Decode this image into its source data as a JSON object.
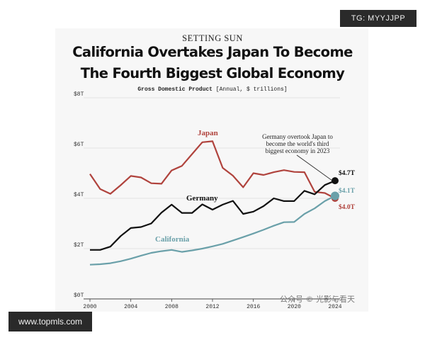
{
  "header": {
    "kicker": "SETTING SUN",
    "title_line1": "California Overtakes Japan To Become",
    "title_line2": "The Fourth Biggest Global Economy",
    "subtitle_bold": "Gross Domestic Product",
    "subtitle_rest": "[Annual, $ trillions]"
  },
  "badges": {
    "tg": "TG: MYYJJPP",
    "site": "www.topmls.com",
    "watermark": "公众号 © 光影与看天"
  },
  "chart_data": {
    "type": "line",
    "title": "California Overtakes Japan To Become The Fourth Biggest Global Economy",
    "ylabel": "Gross Domestic Product [Annual, $ trillions]",
    "ylim": [
      0,
      8
    ],
    "xlim": [
      2000,
      2024
    ],
    "y_ticks": [
      0,
      2,
      4,
      6,
      8
    ],
    "y_tick_labels": [
      "$0T",
      "$2T",
      "$4T",
      "$6T",
      "$8T"
    ],
    "x_ticks": [
      2000,
      2004,
      2008,
      2012,
      2016,
      2020,
      2024
    ],
    "x_tick_labels": [
      "2000",
      "2004",
      "2008",
      "2012",
      "2016",
      "2020",
      "2024"
    ],
    "grid": "horizontal",
    "x": [
      2000,
      2001,
      2002,
      2003,
      2004,
      2005,
      2006,
      2007,
      2008,
      2009,
      2010,
      2011,
      2012,
      2013,
      2014,
      2015,
      2016,
      2017,
      2018,
      2019,
      2020,
      2021,
      2022,
      2023,
      2024
    ],
    "series": [
      {
        "name": "Japan",
        "color": "#b0433d",
        "values": [
          4.97,
          4.37,
          4.18,
          4.52,
          4.89,
          4.83,
          4.6,
          4.58,
          5.11,
          5.29,
          5.76,
          6.23,
          6.27,
          5.21,
          4.9,
          4.44,
          5.0,
          4.93,
          5.04,
          5.12,
          5.05,
          5.04,
          4.26,
          4.21,
          4.0
        ],
        "end_label": "$4.0T"
      },
      {
        "name": "Germany",
        "color": "#111111",
        "values": [
          1.95,
          1.95,
          2.08,
          2.5,
          2.82,
          2.86,
          3.0,
          3.43,
          3.75,
          3.42,
          3.42,
          3.76,
          3.55,
          3.75,
          3.9,
          3.38,
          3.47,
          3.69,
          4.0,
          3.89,
          3.89,
          4.3,
          4.16,
          4.53,
          4.7
        ],
        "end_label": "$4.7T"
      },
      {
        "name": "California",
        "color": "#6aa0a9",
        "values": [
          1.36,
          1.38,
          1.42,
          1.5,
          1.6,
          1.72,
          1.83,
          1.9,
          1.95,
          1.87,
          1.93,
          2.0,
          2.09,
          2.19,
          2.32,
          2.46,
          2.6,
          2.75,
          2.91,
          3.05,
          3.06,
          3.38,
          3.6,
          3.89,
          4.1
        ],
        "end_label": "$4.1T"
      }
    ],
    "annotation": "Germany overtook Japan to become the world's third biggest economy in 2023"
  }
}
